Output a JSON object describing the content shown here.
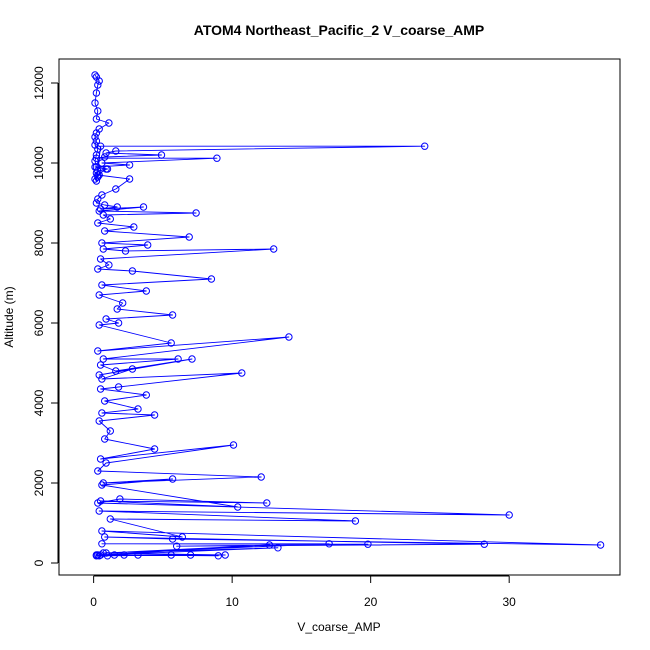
{
  "chart_data": {
    "type": "line",
    "title": "ATOM4 Northeast_Pacific_2 V_coarse_AMP",
    "xlabel": "V_coarse_AMP",
    "ylabel": "Altitude (m)",
    "xlim": [
      -2.5,
      38
    ],
    "ylim": [
      -300,
      12600
    ],
    "x_ticks": [
      0,
      10,
      20,
      30
    ],
    "y_ticks": [
      0,
      2000,
      4000,
      6000,
      8000,
      10000,
      12000
    ],
    "grid": false,
    "markers": "open-circle",
    "line_color": "#0000FF",
    "series": [
      {
        "x": [
          0.1,
          0.2,
          0.4,
          0.3,
          0.2,
          0.1,
          0.3,
          0.2,
          1.1,
          0.4,
          0.2,
          0.1,
          0.2,
          0.1,
          0.3,
          0.2,
          0.1,
          0.2,
          1.0,
          0.3,
          0.2,
          0.4,
          0.3,
          0.1,
          0.2,
          0.5,
          23.9,
          1.6,
          0.9,
          4.9,
          0.8,
          0.2,
          8.9,
          0.6,
          2.6,
          0.1,
          0.9,
          0.3,
          2.6,
          1.6,
          0.6,
          0.3,
          0.2,
          0.8,
          1.7,
          0.5,
          3.6,
          0.4,
          7.4,
          0.7,
          1.2,
          0.3,
          2.9,
          0.8,
          6.9,
          0.6,
          3.9,
          0.7,
          2.3,
          13.0,
          0.5,
          1.1,
          0.3,
          2.8,
          8.5,
          0.6,
          3.8,
          0.4,
          2.1,
          1.7,
          5.7,
          0.9,
          1.8,
          0.4,
          5.6,
          0.3,
          14.1,
          0.7,
          6.1,
          0.5,
          1.6,
          7.1,
          0.4,
          2.8,
          0.6,
          10.7,
          1.8,
          0.5,
          3.8,
          0.8,
          3.2,
          0.6,
          4.4,
          0.4,
          1.2,
          0.8,
          4.4,
          0.5,
          10.1,
          0.9,
          0.3,
          12.1,
          0.7,
          5.7,
          0.6,
          10.4,
          0.5,
          12.5,
          1.9,
          0.3,
          30.0,
          0.4,
          18.9,
          1.2,
          6.4,
          0.6,
          36.6,
          5.7,
          0.8,
          28.2,
          6.0,
          19.8,
          0.6,
          17.0,
          0.9,
          12.7,
          0.5,
          13.3,
          0.7,
          9.5,
          2.2,
          9.0,
          3.2,
          1.5,
          0.4,
          0.2,
          7.0,
          1.0,
          5.6,
          0.3,
          0.2
        ],
        "y": [
          12200,
          12150,
          12050,
          11950,
          11750,
          11500,
          11300,
          11100,
          11000,
          10850,
          10750,
          10650,
          10550,
          10450,
          10350,
          10200,
          10050,
          9900,
          9850,
          9800,
          9750,
          9700,
          9650,
          9600,
          9550,
          10420,
          10420,
          10300,
          10250,
          10200,
          10150,
          10120,
          10120,
          10000,
          9950,
          9900,
          9850,
          9700,
          9600,
          9350,
          9200,
          9100,
          9000,
          8950,
          8900,
          8850,
          8900,
          8800,
          8750,
          8700,
          8600,
          8500,
          8400,
          8300,
          8150,
          8000,
          7950,
          7850,
          7800,
          7850,
          7600,
          7450,
          7350,
          7300,
          7100,
          6950,
          6800,
          6700,
          6500,
          6350,
          6200,
          6100,
          6000,
          5950,
          5500,
          5300,
          5650,
          5100,
          5100,
          4950,
          4800,
          5100,
          4700,
          4850,
          4600,
          4750,
          4400,
          4350,
          4200,
          4050,
          3850,
          3750,
          3700,
          3550,
          3300,
          3100,
          2850,
          2600,
          2950,
          2500,
          2300,
          2150,
          2000,
          2100,
          1950,
          1400,
          1550,
          1500,
          1600,
          1500,
          1200,
          1300,
          1050,
          1100,
          650,
          800,
          450,
          600,
          650,
          470,
          420,
          470,
          480,
          480,
          250,
          450,
          200,
          380,
          250,
          200,
          200,
          180,
          200,
          200,
          180,
          200,
          200,
          180,
          200,
          200,
          180
        ]
      }
    ]
  }
}
